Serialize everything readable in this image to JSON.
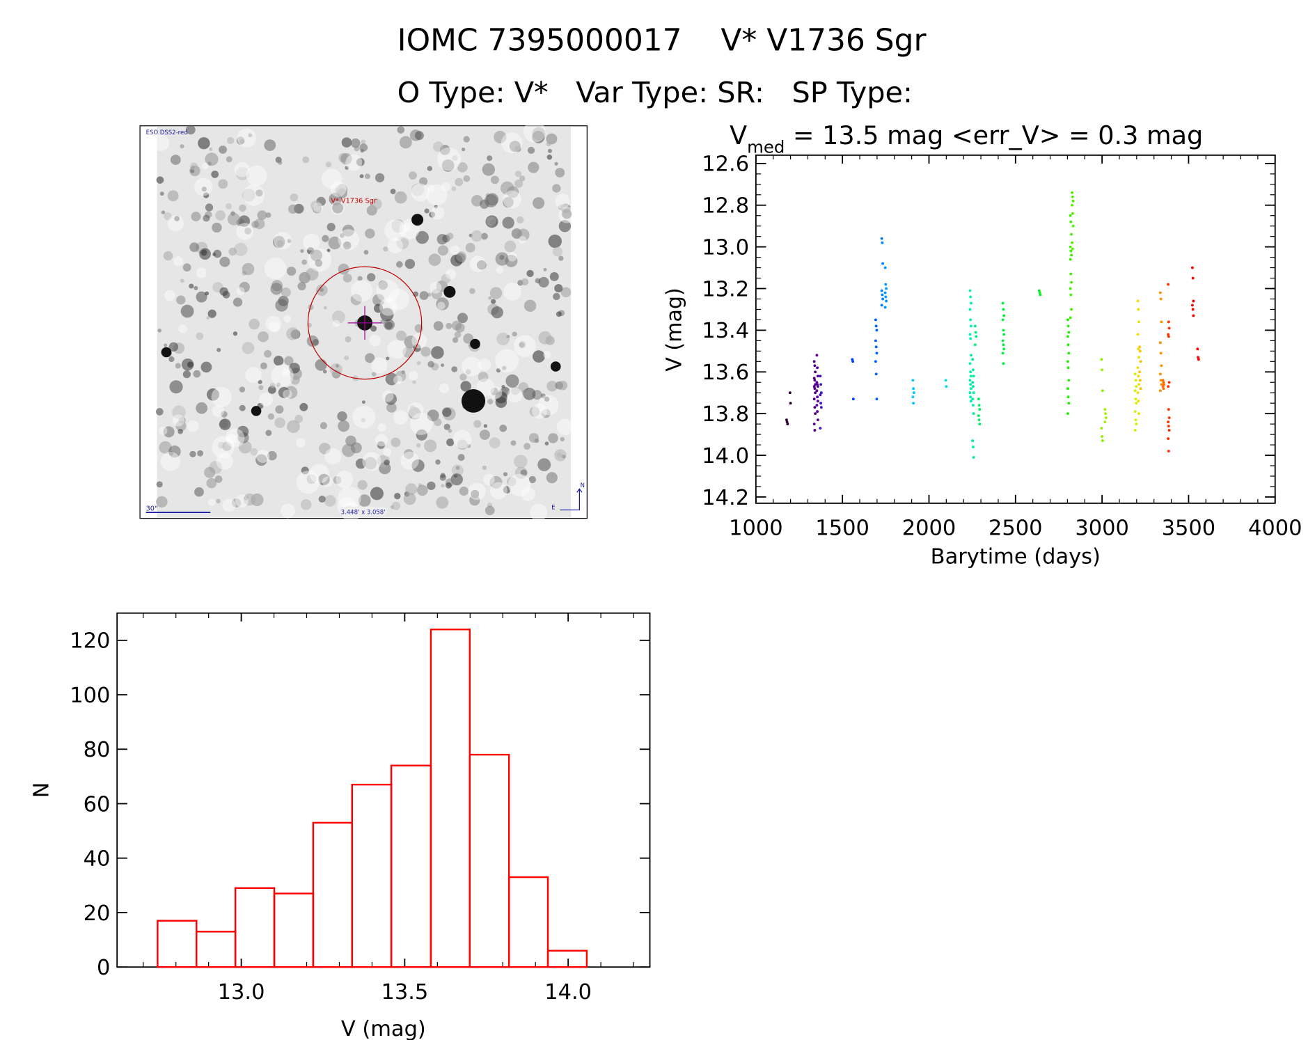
{
  "header": {
    "title": "IOMC 7395000017    V* V1736 Sgr",
    "subtitle": "O Type: V*   Var Type: SR:   SP Type:"
  },
  "image_panel": {
    "survey_label": "ESO DSS2-red",
    "target_label": "V* V1736 Sgr",
    "scale_label": "30\"",
    "field_size_label": "3.448' x 3.058'",
    "north_label": "N",
    "east_label": "E"
  },
  "chart_data": [
    {
      "type": "scatter",
      "title_main": "V",
      "title_sub": "med",
      "title_rest": " = 13.5 mag <err_V> = 0.3 mag",
      "xlabel": "Barytime (days)",
      "ylabel": "V (mag)",
      "xlim": [
        1000,
        4000
      ],
      "ylim": [
        14.23,
        12.56
      ],
      "xticks": [
        "1000",
        "1500",
        "2000",
        "2500",
        "3000",
        "3500",
        "4000"
      ],
      "xtick_values": [
        1000,
        1500,
        2000,
        2500,
        3000,
        3500,
        4000
      ],
      "yticks": [
        "12.6",
        "12.8",
        "13.0",
        "13.2",
        "13.4",
        "13.6",
        "13.8",
        "14.0",
        "14.2"
      ],
      "ytick_values": [
        12.6,
        12.8,
        13.0,
        13.2,
        13.4,
        13.6,
        13.8,
        14.0,
        14.2
      ],
      "groups": [
        {
          "t": 1180,
          "color": "#300030",
          "v": [
            13.83,
            13.84,
            13.85
          ]
        },
        {
          "t": 1200,
          "color": "#300030",
          "v": [
            13.7,
            13.75
          ]
        },
        {
          "t": 1340,
          "color": "#500080",
          "v": [
            13.55,
            13.57,
            13.6,
            13.63,
            13.64,
            13.66,
            13.67,
            13.68,
            13.7,
            13.73,
            13.77,
            13.8,
            13.85,
            13.88
          ]
        },
        {
          "t": 1355,
          "color": "#5a00a0",
          "v": [
            13.52,
            13.58,
            13.62,
            13.65,
            13.66,
            13.67,
            13.69,
            13.72,
            13.74,
            13.76,
            13.79,
            13.83
          ]
        },
        {
          "t": 1375,
          "color": "#4010c8",
          "v": [
            13.62,
            13.66,
            13.7,
            13.71,
            13.75,
            13.77,
            13.87
          ]
        },
        {
          "t": 1560,
          "color": "#0040ff",
          "v": [
            13.54,
            13.55,
            13.73
          ]
        },
        {
          "t": 1695,
          "color": "#0060ff",
          "v": [
            13.35,
            13.38,
            13.4,
            13.45,
            13.48,
            13.51,
            13.55,
            13.61,
            13.73
          ]
        },
        {
          "t": 1730,
          "color": "#0080ff",
          "v": [
            12.96,
            12.98,
            13.08,
            13.21,
            13.23,
            13.25,
            13.28
          ]
        },
        {
          "t": 1750,
          "color": "#0098ff",
          "v": [
            13.1,
            13.18,
            13.2,
            13.22,
            13.24,
            13.26,
            13.29
          ]
        },
        {
          "t": 1910,
          "color": "#00c8ff",
          "v": [
            13.64,
            13.68,
            13.7,
            13.72,
            13.75
          ]
        },
        {
          "t": 2100,
          "color": "#00e0e0",
          "v": [
            13.64,
            13.67
          ]
        },
        {
          "t": 2240,
          "color": "#00f0b0",
          "v": [
            13.21,
            13.24,
            13.27,
            13.3,
            13.35,
            13.38,
            13.42,
            13.44,
            13.52,
            13.56,
            13.6,
            13.62,
            13.64,
            13.66,
            13.68,
            13.7,
            13.72,
            13.74
          ]
        },
        {
          "t": 2255,
          "color": "#00f0a0",
          "v": [
            13.54,
            13.59,
            13.62,
            13.65,
            13.67,
            13.7,
            13.73,
            13.76,
            13.8,
            13.93,
            13.96,
            14.01
          ]
        },
        {
          "t": 2270,
          "color": "#00f080",
          "v": [
            13.38,
            13.41,
            13.43,
            13.47
          ]
        },
        {
          "t": 2290,
          "color": "#00f060",
          "v": [
            13.73,
            13.76,
            13.78,
            13.81,
            13.83,
            13.85
          ]
        },
        {
          "t": 2430,
          "color": "#00f040",
          "v": [
            13.27,
            13.3,
            13.33,
            13.35,
            13.4,
            13.42,
            13.45,
            13.47,
            13.49,
            13.51,
            13.56
          ]
        },
        {
          "t": 2640,
          "color": "#10f020",
          "v": [
            13.21,
            13.22,
            13.23
          ]
        },
        {
          "t": 2805,
          "color": "#20f000",
          "v": [
            13.35,
            13.38,
            13.41,
            13.43,
            13.47,
            13.51,
            13.55,
            13.58,
            13.64,
            13.68,
            13.72,
            13.75,
            13.8
          ]
        },
        {
          "t": 2820,
          "color": "#40f000",
          "v": [
            12.85,
            12.88,
            12.94,
            13.0,
            13.02,
            13.04,
            13.06,
            13.13,
            13.17,
            13.2,
            13.23,
            13.3,
            13.34
          ]
        },
        {
          "t": 2830,
          "color": "#50f000",
          "v": [
            12.74,
            12.76,
            12.78,
            12.8,
            12.84,
            12.9,
            12.98,
            13.01
          ]
        },
        {
          "t": 3000,
          "color": "#90f000",
          "v": [
            13.54,
            13.59,
            13.69,
            13.87,
            13.91,
            13.93
          ]
        },
        {
          "t": 3020,
          "color": "#a0f000",
          "v": [
            13.78,
            13.8,
            13.82,
            13.84
          ]
        },
        {
          "t": 3195,
          "color": "#d8f000",
          "v": [
            13.61,
            13.64,
            13.67,
            13.69,
            13.73,
            13.75,
            13.79,
            13.83,
            13.85,
            13.88
          ]
        },
        {
          "t": 3210,
          "color": "#f0e000",
          "v": [
            13.26,
            13.3,
            13.36,
            13.42,
            13.49,
            13.53,
            13.58,
            13.62,
            13.66,
            13.7,
            13.74,
            13.8
          ]
        },
        {
          "t": 3220,
          "color": "#ffc000",
          "v": [
            13.48,
            13.5,
            13.55,
            13.6,
            13.64,
            13.68
          ]
        },
        {
          "t": 3340,
          "color": "#ff9000",
          "v": [
            13.22,
            13.25,
            13.36,
            13.46,
            13.51,
            13.57,
            13.61,
            13.64,
            13.66,
            13.69
          ]
        },
        {
          "t": 3355,
          "color": "#ff7000",
          "v": [
            13.64,
            13.65,
            13.66,
            13.67,
            13.68
          ]
        },
        {
          "t": 3385,
          "color": "#ff3000",
          "v": [
            13.18,
            13.36,
            13.39,
            13.42,
            13.43,
            13.65,
            13.67,
            13.78,
            13.82,
            13.84,
            13.86,
            13.88,
            13.92,
            13.98
          ]
        },
        {
          "t": 3525,
          "color": "#ff0000",
          "v": [
            13.1,
            13.15,
            13.26,
            13.28,
            13.3,
            13.33
          ]
        },
        {
          "t": 3555,
          "color": "#ff0000",
          "v": [
            13.49,
            13.53,
            13.54
          ]
        }
      ]
    },
    {
      "type": "bar",
      "histogram": true,
      "xlabel": "V (mag)",
      "ylabel": "N",
      "xlim": [
        12.62,
        14.25
      ],
      "ylim": [
        0,
        130
      ],
      "xticks": [
        "13.0",
        "13.5",
        "14.0"
      ],
      "xtick_values": [
        13.0,
        13.5,
        14.0
      ],
      "yticks": [
        "0",
        "20",
        "40",
        "60",
        "80",
        "100",
        "120"
      ],
      "ytick_values": [
        0,
        20,
        40,
        60,
        80,
        100,
        120
      ],
      "bin_edges": [
        12.744,
        12.863,
        12.982,
        13.101,
        13.22,
        13.339,
        13.459,
        13.58,
        13.699,
        13.819,
        13.938,
        14.057
      ],
      "counts": [
        17,
        13,
        29,
        27,
        53,
        67,
        74,
        124,
        78,
        33,
        6
      ],
      "color": "#ff0000"
    }
  ]
}
